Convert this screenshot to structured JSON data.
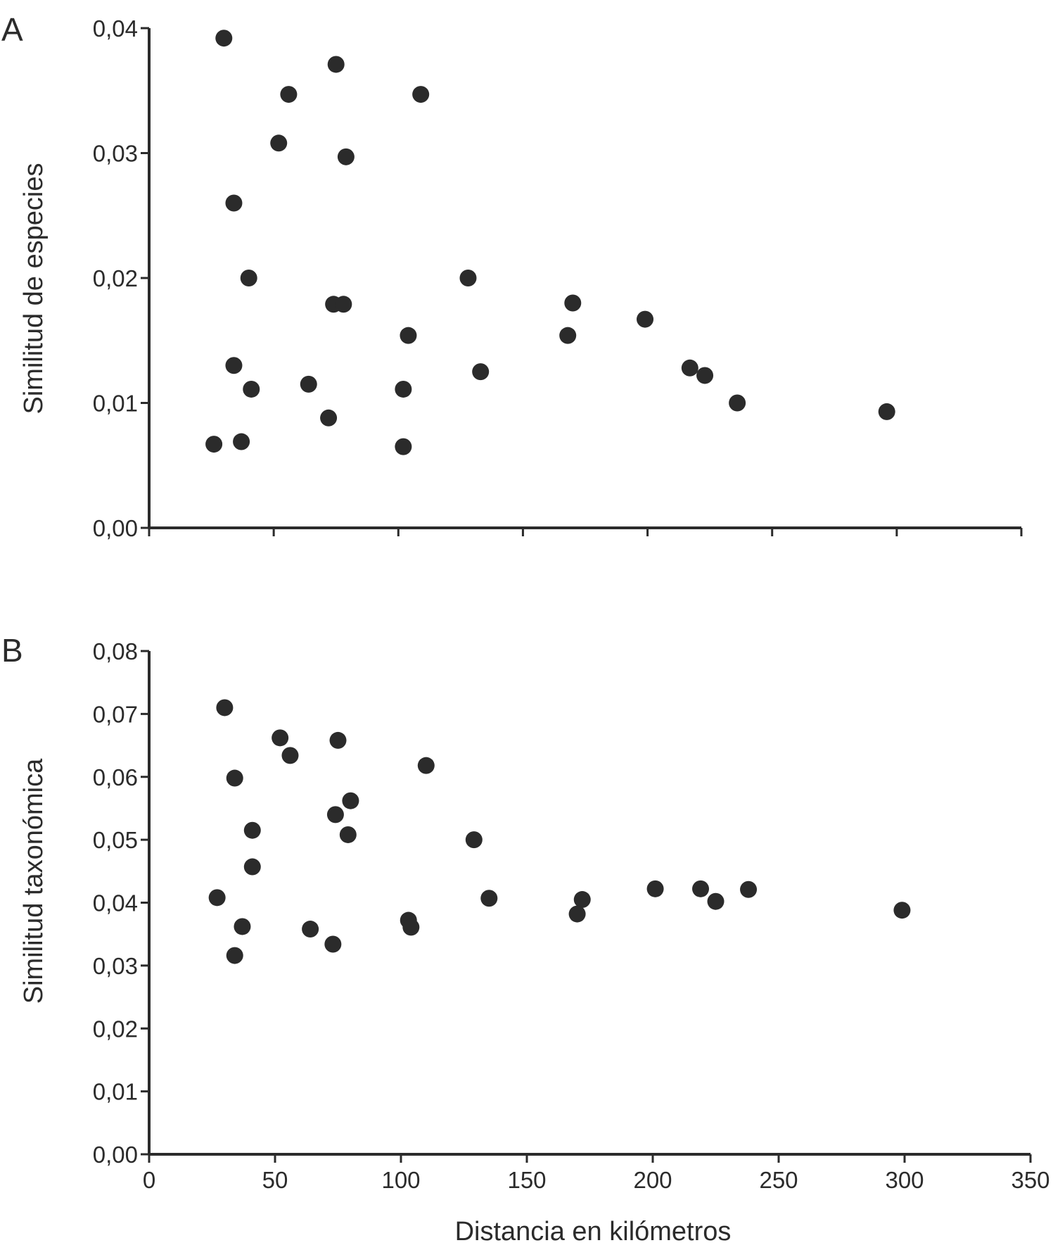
{
  "chart_data": [
    {
      "type": "scatter",
      "panel_label": "A",
      "xlabel": "",
      "ylabel": "Similitud de especies",
      "xlim": [
        0,
        350
      ],
      "ylim": [
        0,
        0.04
      ],
      "y_ticks": [
        "0,00",
        "0,01",
        "0,02",
        "0,03",
        "0,04"
      ],
      "x_ticks": [],
      "points": [
        {
          "x": 30,
          "y": 0.0392
        },
        {
          "x": 75,
          "y": 0.0371
        },
        {
          "x": 56,
          "y": 0.0347
        },
        {
          "x": 109,
          "y": 0.0347
        },
        {
          "x": 52,
          "y": 0.0308
        },
        {
          "x": 79,
          "y": 0.0297
        },
        {
          "x": 34,
          "y": 0.026
        },
        {
          "x": 40,
          "y": 0.02
        },
        {
          "x": 128,
          "y": 0.02
        },
        {
          "x": 74,
          "y": 0.0179
        },
        {
          "x": 78,
          "y": 0.0179
        },
        {
          "x": 170,
          "y": 0.018
        },
        {
          "x": 199,
          "y": 0.0167
        },
        {
          "x": 104,
          "y": 0.0154
        },
        {
          "x": 168,
          "y": 0.0154
        },
        {
          "x": 34,
          "y": 0.013
        },
        {
          "x": 217,
          "y": 0.0128
        },
        {
          "x": 133,
          "y": 0.0125
        },
        {
          "x": 223,
          "y": 0.0122
        },
        {
          "x": 64,
          "y": 0.0115
        },
        {
          "x": 41,
          "y": 0.0111
        },
        {
          "x": 102,
          "y": 0.0111
        },
        {
          "x": 236,
          "y": 0.01
        },
        {
          "x": 296,
          "y": 0.0093
        },
        {
          "x": 72,
          "y": 0.0088
        },
        {
          "x": 26,
          "y": 0.0067
        },
        {
          "x": 37,
          "y": 0.0069
        },
        {
          "x": 102,
          "y": 0.0065
        }
      ]
    },
    {
      "type": "scatter",
      "panel_label": "B",
      "xlabel": "Distancia en kilómetros",
      "ylabel": "Similitud taxonómica",
      "xlim": [
        0,
        350
      ],
      "ylim": [
        0,
        0.08
      ],
      "y_ticks": [
        "0,00",
        "0,01",
        "0,02",
        "0,03",
        "0,04",
        "0,05",
        "0,06",
        "0,07",
        "0,08"
      ],
      "x_ticks": [
        "0",
        "50",
        "100",
        "150",
        "200",
        "250",
        "300",
        "350"
      ],
      "points": [
        {
          "x": 30,
          "y": 0.071
        },
        {
          "x": 52,
          "y": 0.0662
        },
        {
          "x": 75,
          "y": 0.0658
        },
        {
          "x": 56,
          "y": 0.0634
        },
        {
          "x": 110,
          "y": 0.0618
        },
        {
          "x": 34,
          "y": 0.0598
        },
        {
          "x": 80,
          "y": 0.0562
        },
        {
          "x": 74,
          "y": 0.054
        },
        {
          "x": 41,
          "y": 0.0515
        },
        {
          "x": 79,
          "y": 0.0508
        },
        {
          "x": 129,
          "y": 0.05
        },
        {
          "x": 41,
          "y": 0.0457
        },
        {
          "x": 201,
          "y": 0.0422
        },
        {
          "x": 219,
          "y": 0.0422
        },
        {
          "x": 238,
          "y": 0.0421
        },
        {
          "x": 27,
          "y": 0.0408
        },
        {
          "x": 135,
          "y": 0.0407
        },
        {
          "x": 172,
          "y": 0.0405
        },
        {
          "x": 225,
          "y": 0.0402
        },
        {
          "x": 299,
          "y": 0.0388
        },
        {
          "x": 170,
          "y": 0.0382
        },
        {
          "x": 103,
          "y": 0.0372
        },
        {
          "x": 37,
          "y": 0.0362
        },
        {
          "x": 104,
          "y": 0.0361
        },
        {
          "x": 64,
          "y": 0.0358
        },
        {
          "x": 73,
          "y": 0.0334
        },
        {
          "x": 34,
          "y": 0.0316
        }
      ]
    }
  ]
}
